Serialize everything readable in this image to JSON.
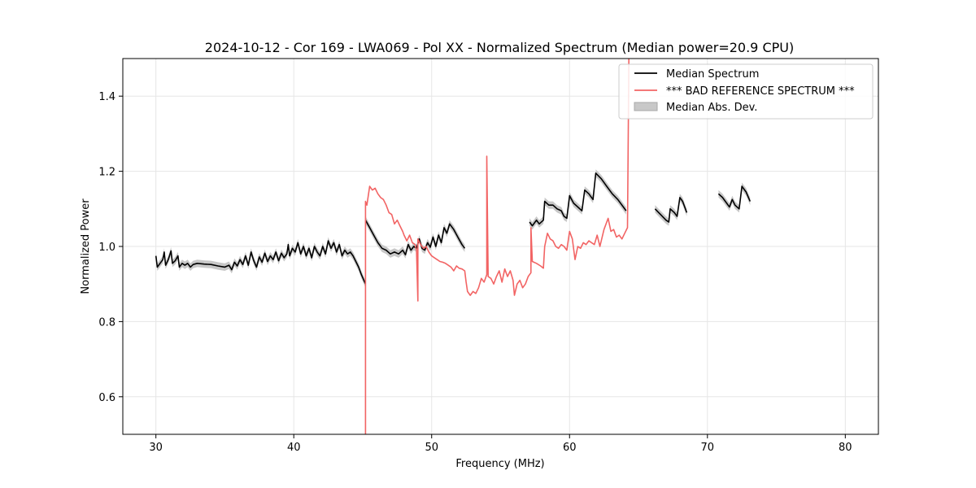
{
  "chart_data": {
    "type": "line",
    "title": "2024-10-12 - Cor 169 - LWA069 - Pol XX - Normalized Spectrum (Median power=20.9 CPU)",
    "xlabel": "Frequency (MHz)",
    "ylabel": "Normalized Power",
    "xlim": [
      27.6,
      82.4
    ],
    "ylim": [
      0.5,
      1.5
    ],
    "xticks": [
      30,
      40,
      50,
      60,
      70,
      80
    ],
    "yticks": [
      0.6,
      0.8,
      1.0,
      1.2,
      1.4
    ],
    "xtick_labels": [
      "30",
      "40",
      "50",
      "60",
      "70",
      "80"
    ],
    "ytick_labels": [
      "0.6",
      "0.8",
      "1.0",
      "1.2",
      "1.4"
    ],
    "grid": true,
    "legend_position": "top-right",
    "colors": {
      "median": "#000000",
      "reference": "#f26464",
      "mad_fill": "#c8c8c8"
    },
    "series": [
      {
        "name": "Median Spectrum",
        "color": "#000000",
        "segments": [
          [
            [
              30.0,
              0.975
            ],
            [
              30.1,
              0.945
            ],
            [
              30.3,
              0.955
            ],
            [
              30.5,
              0.965
            ],
            [
              30.6,
              0.985
            ],
            [
              30.7,
              0.95
            ],
            [
              30.9,
              0.965
            ],
            [
              31.1,
              0.988
            ],
            [
              31.2,
              0.955
            ],
            [
              31.4,
              0.962
            ],
            [
              31.6,
              0.975
            ],
            [
              31.7,
              0.945
            ],
            [
              31.9,
              0.955
            ],
            [
              32.1,
              0.95
            ],
            [
              32.3,
              0.955
            ],
            [
              32.5,
              0.945
            ],
            [
              32.7,
              0.952
            ],
            [
              33.0,
              0.955
            ],
            [
              33.5,
              0.953
            ],
            [
              34.0,
              0.952
            ],
            [
              34.5,
              0.948
            ],
            [
              35.0,
              0.945
            ],
            [
              35.3,
              0.95
            ],
            [
              35.5,
              0.938
            ],
            [
              35.7,
              0.958
            ],
            [
              35.9,
              0.948
            ],
            [
              36.1,
              0.965
            ],
            [
              36.3,
              0.952
            ],
            [
              36.5,
              0.975
            ],
            [
              36.7,
              0.95
            ],
            [
              36.9,
              0.985
            ],
            [
              37.1,
              0.962
            ],
            [
              37.3,
              0.945
            ],
            [
              37.5,
              0.972
            ],
            [
              37.7,
              0.958
            ],
            [
              37.9,
              0.982
            ],
            [
              38.1,
              0.96
            ],
            [
              38.3,
              0.975
            ],
            [
              38.5,
              0.965
            ],
            [
              38.7,
              0.985
            ],
            [
              38.9,
              0.962
            ],
            [
              39.1,
              0.982
            ],
            [
              39.3,
              0.97
            ],
            [
              39.5,
              0.98
            ],
            [
              39.6,
              1.005
            ],
            [
              39.7,
              0.975
            ],
            [
              39.9,
              0.995
            ],
            [
              40.1,
              0.985
            ],
            [
              40.3,
              1.01
            ],
            [
              40.5,
              0.98
            ],
            [
              40.7,
              1.0
            ],
            [
              40.9,
              0.975
            ],
            [
              41.1,
              0.995
            ],
            [
              41.3,
              0.97
            ],
            [
              41.5,
              1.0
            ],
            [
              41.7,
              0.985
            ],
            [
              41.9,
              0.975
            ],
            [
              42.1,
              1.0
            ],
            [
              42.3,
              0.98
            ],
            [
              42.5,
              1.015
            ],
            [
              42.7,
              0.995
            ],
            [
              42.9,
              1.01
            ],
            [
              43.1,
              0.985
            ],
            [
              43.3,
              1.005
            ],
            [
              43.5,
              0.975
            ],
            [
              43.7,
              0.99
            ],
            [
              43.9,
              0.98
            ],
            [
              44.1,
              0.985
            ],
            [
              44.3,
              0.975
            ],
            [
              44.5,
              0.96
            ],
            [
              44.7,
              0.945
            ],
            [
              44.9,
              0.925
            ],
            [
              45.2,
              0.9
            ]
          ],
          [
            [
              45.2,
              1.07
            ],
            [
              45.5,
              1.05
            ],
            [
              45.8,
              1.03
            ],
            [
              46.1,
              1.01
            ],
            [
              46.4,
              0.995
            ],
            [
              46.7,
              0.99
            ],
            [
              47.0,
              0.98
            ],
            [
              47.3,
              0.985
            ],
            [
              47.6,
              0.98
            ],
            [
              47.9,
              0.99
            ],
            [
              48.1,
              0.978
            ],
            [
              48.3,
              1.005
            ],
            [
              48.5,
              0.99
            ],
            [
              48.7,
              1.0
            ],
            [
              48.9,
              0.995
            ],
            [
              49.1,
              1.02
            ],
            [
              49.3,
              0.995
            ],
            [
              49.5,
              0.99
            ],
            [
              49.7,
              1.01
            ],
            [
              49.9,
              0.998
            ],
            [
              50.1,
              1.025
            ],
            [
              50.3,
              1.0
            ],
            [
              50.5,
              1.03
            ],
            [
              50.7,
              1.01
            ],
            [
              50.9,
              1.05
            ],
            [
              51.1,
              1.035
            ],
            [
              51.3,
              1.06
            ],
            [
              51.6,
              1.045
            ],
            [
              51.9,
              1.025
            ],
            [
              52.2,
              1.005
            ],
            [
              52.4,
              0.995
            ]
          ],
          [
            [
              57.1,
              1.065
            ],
            [
              57.3,
              1.055
            ],
            [
              57.6,
              1.07
            ],
            [
              57.8,
              1.06
            ],
            [
              58.1,
              1.07
            ],
            [
              58.2,
              1.12
            ],
            [
              58.5,
              1.11
            ],
            [
              58.8,
              1.11
            ],
            [
              59.1,
              1.1
            ],
            [
              59.4,
              1.095
            ],
            [
              59.6,
              1.08
            ],
            [
              59.8,
              1.075
            ],
            [
              60.0,
              1.135
            ],
            [
              60.3,
              1.115
            ],
            [
              60.6,
              1.105
            ],
            [
              60.9,
              1.095
            ],
            [
              61.1,
              1.15
            ],
            [
              61.4,
              1.14
            ],
            [
              61.7,
              1.125
            ],
            [
              61.9,
              1.195
            ],
            [
              62.3,
              1.18
            ],
            [
              62.7,
              1.16
            ],
            [
              63.1,
              1.14
            ],
            [
              63.5,
              1.125
            ],
            [
              63.9,
              1.105
            ],
            [
              64.1,
              1.095
            ]
          ],
          [
            [
              66.2,
              1.1
            ],
            [
              66.6,
              1.085
            ],
            [
              67.0,
              1.07
            ],
            [
              67.2,
              1.065
            ],
            [
              67.3,
              1.1
            ],
            [
              67.6,
              1.09
            ],
            [
              67.8,
              1.08
            ],
            [
              68.0,
              1.13
            ],
            [
              68.2,
              1.12
            ],
            [
              68.5,
              1.09
            ]
          ],
          [
            [
              70.8,
              1.14
            ],
            [
              71.1,
              1.13
            ],
            [
              71.4,
              1.115
            ],
            [
              71.6,
              1.105
            ],
            [
              71.8,
              1.125
            ],
            [
              72.0,
              1.11
            ],
            [
              72.3,
              1.1
            ],
            [
              72.5,
              1.16
            ],
            [
              72.8,
              1.145
            ],
            [
              73.1,
              1.12
            ]
          ]
        ]
      },
      {
        "name": "*** BAD REFERENCE SPECTRUM ***",
        "color": "#f26464",
        "segments": [
          [
            [
              45.2,
              0.5
            ],
            [
              45.2,
              1.12
            ],
            [
              45.3,
              1.11
            ],
            [
              45.5,
              1.16
            ],
            [
              45.7,
              1.15
            ],
            [
              45.9,
              1.155
            ],
            [
              46.1,
              1.14
            ],
            [
              46.3,
              1.13
            ],
            [
              46.5,
              1.125
            ],
            [
              46.7,
              1.11
            ],
            [
              46.9,
              1.09
            ],
            [
              47.1,
              1.085
            ],
            [
              47.3,
              1.06
            ],
            [
              47.5,
              1.07
            ],
            [
              47.7,
              1.055
            ],
            [
              47.9,
              1.04
            ],
            [
              48.0,
              1.03
            ],
            [
              48.2,
              1.015
            ],
            [
              48.4,
              1.03
            ],
            [
              48.6,
              1.01
            ],
            [
              48.8,
              1.005
            ],
            [
              48.9,
              0.99
            ],
            [
              49.0,
              0.855
            ],
            [
              49.0,
              1.02
            ],
            [
              49.2,
              1.005
            ],
            [
              49.4,
              0.995
            ],
            [
              49.6,
              1.0
            ],
            [
              49.8,
              0.985
            ],
            [
              50.0,
              0.975
            ],
            [
              50.2,
              0.97
            ],
            [
              50.4,
              0.965
            ],
            [
              50.6,
              0.96
            ],
            [
              50.8,
              0.958
            ],
            [
              51.0,
              0.955
            ],
            [
              51.2,
              0.95
            ],
            [
              51.4,
              0.945
            ],
            [
              51.6,
              0.935
            ],
            [
              51.8,
              0.948
            ],
            [
              52.0,
              0.942
            ],
            [
              52.2,
              0.94
            ],
            [
              52.4,
              0.935
            ],
            [
              52.5,
              0.905
            ],
            [
              52.6,
              0.88
            ],
            [
              52.8,
              0.87
            ],
            [
              53.0,
              0.88
            ],
            [
              53.2,
              0.875
            ],
            [
              53.4,
              0.89
            ],
            [
              53.6,
              0.915
            ],
            [
              53.8,
              0.905
            ],
            [
              54.0,
              0.925
            ],
            [
              54.0,
              1.24
            ],
            [
              54.1,
              0.92
            ],
            [
              54.3,
              0.915
            ],
            [
              54.5,
              0.9
            ],
            [
              54.7,
              0.92
            ],
            [
              54.9,
              0.935
            ],
            [
              55.1,
              0.905
            ],
            [
              55.3,
              0.94
            ],
            [
              55.5,
              0.92
            ],
            [
              55.7,
              0.935
            ],
            [
              55.9,
              0.91
            ],
            [
              56.0,
              0.87
            ],
            [
              56.2,
              0.9
            ],
            [
              56.4,
              0.91
            ],
            [
              56.6,
              0.89
            ],
            [
              56.8,
              0.9
            ],
            [
              57.0,
              0.92
            ],
            [
              57.2,
              0.93
            ],
            [
              57.2,
              1.05
            ],
            [
              57.3,
              0.96
            ],
            [
              57.6,
              0.955
            ],
            [
              57.9,
              0.948
            ],
            [
              58.1,
              0.942
            ],
            [
              58.2,
              1.0
            ],
            [
              58.4,
              1.035
            ],
            [
              58.6,
              1.02
            ],
            [
              58.8,
              1.015
            ],
            [
              59.0,
              1.0
            ],
            [
              59.2,
              0.995
            ],
            [
              59.4,
              1.005
            ],
            [
              59.6,
              1.0
            ],
            [
              59.8,
              0.99
            ],
            [
              60.0,
              1.04
            ],
            [
              60.2,
              1.02
            ],
            [
              60.4,
              0.965
            ],
            [
              60.6,
              1.0
            ],
            [
              60.8,
              0.995
            ],
            [
              61.0,
              1.01
            ],
            [
              61.2,
              1.005
            ],
            [
              61.4,
              1.015
            ],
            [
              61.6,
              1.01
            ],
            [
              61.8,
              1.005
            ],
            [
              62.0,
              1.03
            ],
            [
              62.2,
              1.0
            ],
            [
              62.5,
              1.045
            ],
            [
              62.8,
              1.075
            ],
            [
              63.0,
              1.04
            ],
            [
              63.2,
              1.045
            ],
            [
              63.4,
              1.025
            ],
            [
              63.6,
              1.03
            ],
            [
              63.8,
              1.02
            ],
            [
              64.0,
              1.035
            ],
            [
              64.2,
              1.05
            ],
            [
              64.3,
              1.5
            ]
          ]
        ]
      }
    ],
    "mad_band": {
      "name": "Median Abs. Dev.",
      "half_width": 0.01
    }
  }
}
